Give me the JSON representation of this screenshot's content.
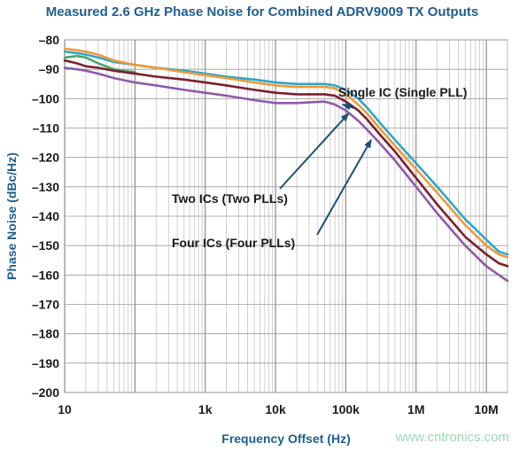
{
  "watermark": "www.cntronics.com",
  "chart_data": {
    "type": "line",
    "title": "Measured 2.6 GHz Phase Noise for Combined ADRV9009 TX Outputs",
    "xlabel": "Frequency Offset (Hz)",
    "ylabel": "Phase Noise (dBc/Hz)",
    "xscale": "log",
    "xlim": [
      10,
      20000000
    ],
    "ylim": [
      -200,
      -80
    ],
    "grid": true,
    "legend": "none",
    "xticks": [
      {
        "value": 10,
        "label": "10"
      },
      {
        "value": 1000,
        "label": "1k"
      },
      {
        "value": 10000,
        "label": "10k"
      },
      {
        "value": 100000,
        "label": "100k"
      },
      {
        "value": 1000000,
        "label": "1M"
      },
      {
        "value": 10000000,
        "label": "10M"
      }
    ],
    "yticks": [
      -80,
      -90,
      -100,
      -110,
      -120,
      -130,
      -140,
      -150,
      -160,
      -170,
      -180,
      -190,
      -200
    ],
    "ytick_labels": [
      "–80",
      "–90",
      "–100",
      "–110",
      "–120",
      "–130",
      "–140",
      "–150",
      "–160",
      "–170",
      "–180",
      "–190",
      "–200"
    ],
    "series": [
      {
        "color": "#2ea6c9",
        "points": [
          [
            10,
            -84
          ],
          [
            15,
            -84.5
          ],
          [
            20,
            -85
          ],
          [
            30,
            -86
          ],
          [
            50,
            -87.5
          ],
          [
            100,
            -88.5
          ],
          [
            200,
            -89.5
          ],
          [
            500,
            -90.5
          ],
          [
            1000,
            -91.5
          ],
          [
            2000,
            -92.5
          ],
          [
            5000,
            -93.5
          ],
          [
            10000,
            -94.5
          ],
          [
            20000,
            -95
          ],
          [
            50000,
            -95
          ],
          [
            70000,
            -95.5
          ],
          [
            100000,
            -97
          ],
          [
            150000,
            -100
          ],
          [
            200000,
            -103
          ],
          [
            300000,
            -108
          ],
          [
            500000,
            -114
          ],
          [
            1000000,
            -122
          ],
          [
            2000000,
            -130
          ],
          [
            5000000,
            -141
          ],
          [
            10000000,
            -148
          ],
          [
            15000000,
            -152
          ],
          [
            20000000,
            -153
          ]
        ]
      },
      {
        "color": "#ef9a3a",
        "points": [
          [
            10,
            -83
          ],
          [
            15,
            -83.5
          ],
          [
            20,
            -84
          ],
          [
            30,
            -85
          ],
          [
            50,
            -87
          ],
          [
            100,
            -88.5
          ],
          [
            200,
            -89.5
          ],
          [
            500,
            -91
          ],
          [
            1000,
            -92
          ],
          [
            2000,
            -93
          ],
          [
            5000,
            -94.5
          ],
          [
            10000,
            -95.5
          ],
          [
            20000,
            -96
          ],
          [
            50000,
            -96
          ],
          [
            70000,
            -96.5
          ],
          [
            100000,
            -98.5
          ],
          [
            150000,
            -102
          ],
          [
            200000,
            -105
          ],
          [
            300000,
            -110
          ],
          [
            500000,
            -116
          ],
          [
            1000000,
            -124
          ],
          [
            2000000,
            -132
          ],
          [
            5000000,
            -143
          ],
          [
            10000000,
            -150
          ],
          [
            15000000,
            -153
          ],
          [
            20000000,
            -154
          ]
        ]
      },
      {
        "color": "#4aa36a",
        "points": [
          [
            10,
            -86
          ],
          [
            15,
            -85.5
          ],
          [
            20,
            -86
          ],
          [
            30,
            -88
          ],
          [
            50,
            -90
          ],
          [
            100,
            -91
          ]
        ]
      },
      {
        "color": "#7c1e2f",
        "points": [
          [
            10,
            -87
          ],
          [
            15,
            -88
          ],
          [
            20,
            -89
          ],
          [
            30,
            -89.5
          ],
          [
            50,
            -90.5
          ],
          [
            100,
            -91.5
          ],
          [
            200,
            -92.5
          ],
          [
            500,
            -93.5
          ],
          [
            1000,
            -94.5
          ],
          [
            2000,
            -95.5
          ],
          [
            5000,
            -97
          ],
          [
            10000,
            -98
          ],
          [
            20000,
            -98.5
          ],
          [
            50000,
            -98.5
          ],
          [
            70000,
            -99
          ],
          [
            100000,
            -101
          ],
          [
            150000,
            -104
          ],
          [
            200000,
            -107
          ],
          [
            300000,
            -112
          ],
          [
            500000,
            -118
          ],
          [
            1000000,
            -127
          ],
          [
            2000000,
            -136
          ],
          [
            5000000,
            -147
          ],
          [
            10000000,
            -153
          ],
          [
            15000000,
            -156
          ],
          [
            20000000,
            -157
          ]
        ]
      },
      {
        "color": "#8e5aa8",
        "points": [
          [
            10,
            -89.5
          ],
          [
            15,
            -90
          ],
          [
            20,
            -90.5
          ],
          [
            30,
            -91.5
          ],
          [
            50,
            -93
          ],
          [
            100,
            -94.5
          ],
          [
            200,
            -95.5
          ],
          [
            500,
            -97
          ],
          [
            1000,
            -98
          ],
          [
            2000,
            -99
          ],
          [
            5000,
            -100.5
          ],
          [
            10000,
            -101.5
          ],
          [
            20000,
            -101.5
          ],
          [
            50000,
            -101
          ],
          [
            70000,
            -102
          ],
          [
            100000,
            -104
          ],
          [
            150000,
            -107.5
          ],
          [
            200000,
            -110.5
          ],
          [
            300000,
            -115
          ],
          [
            500000,
            -121
          ],
          [
            1000000,
            -130
          ],
          [
            2000000,
            -139
          ],
          [
            5000000,
            -150
          ],
          [
            10000000,
            -157
          ],
          [
            15000000,
            -160
          ],
          [
            20000000,
            -162
          ]
        ]
      }
    ],
    "annotations": [
      {
        "text": "Single IC (Single PLL)",
        "point": [
          90000,
          -102
        ],
        "series": 0
      },
      {
        "text": "Two ICs (Two PLLs)",
        "point": [
          110000,
          -105
        ],
        "series": 3
      },
      {
        "text": "Four ICs (Four PLLs)",
        "point": [
          230000,
          -114
        ],
        "series": 4
      }
    ]
  }
}
